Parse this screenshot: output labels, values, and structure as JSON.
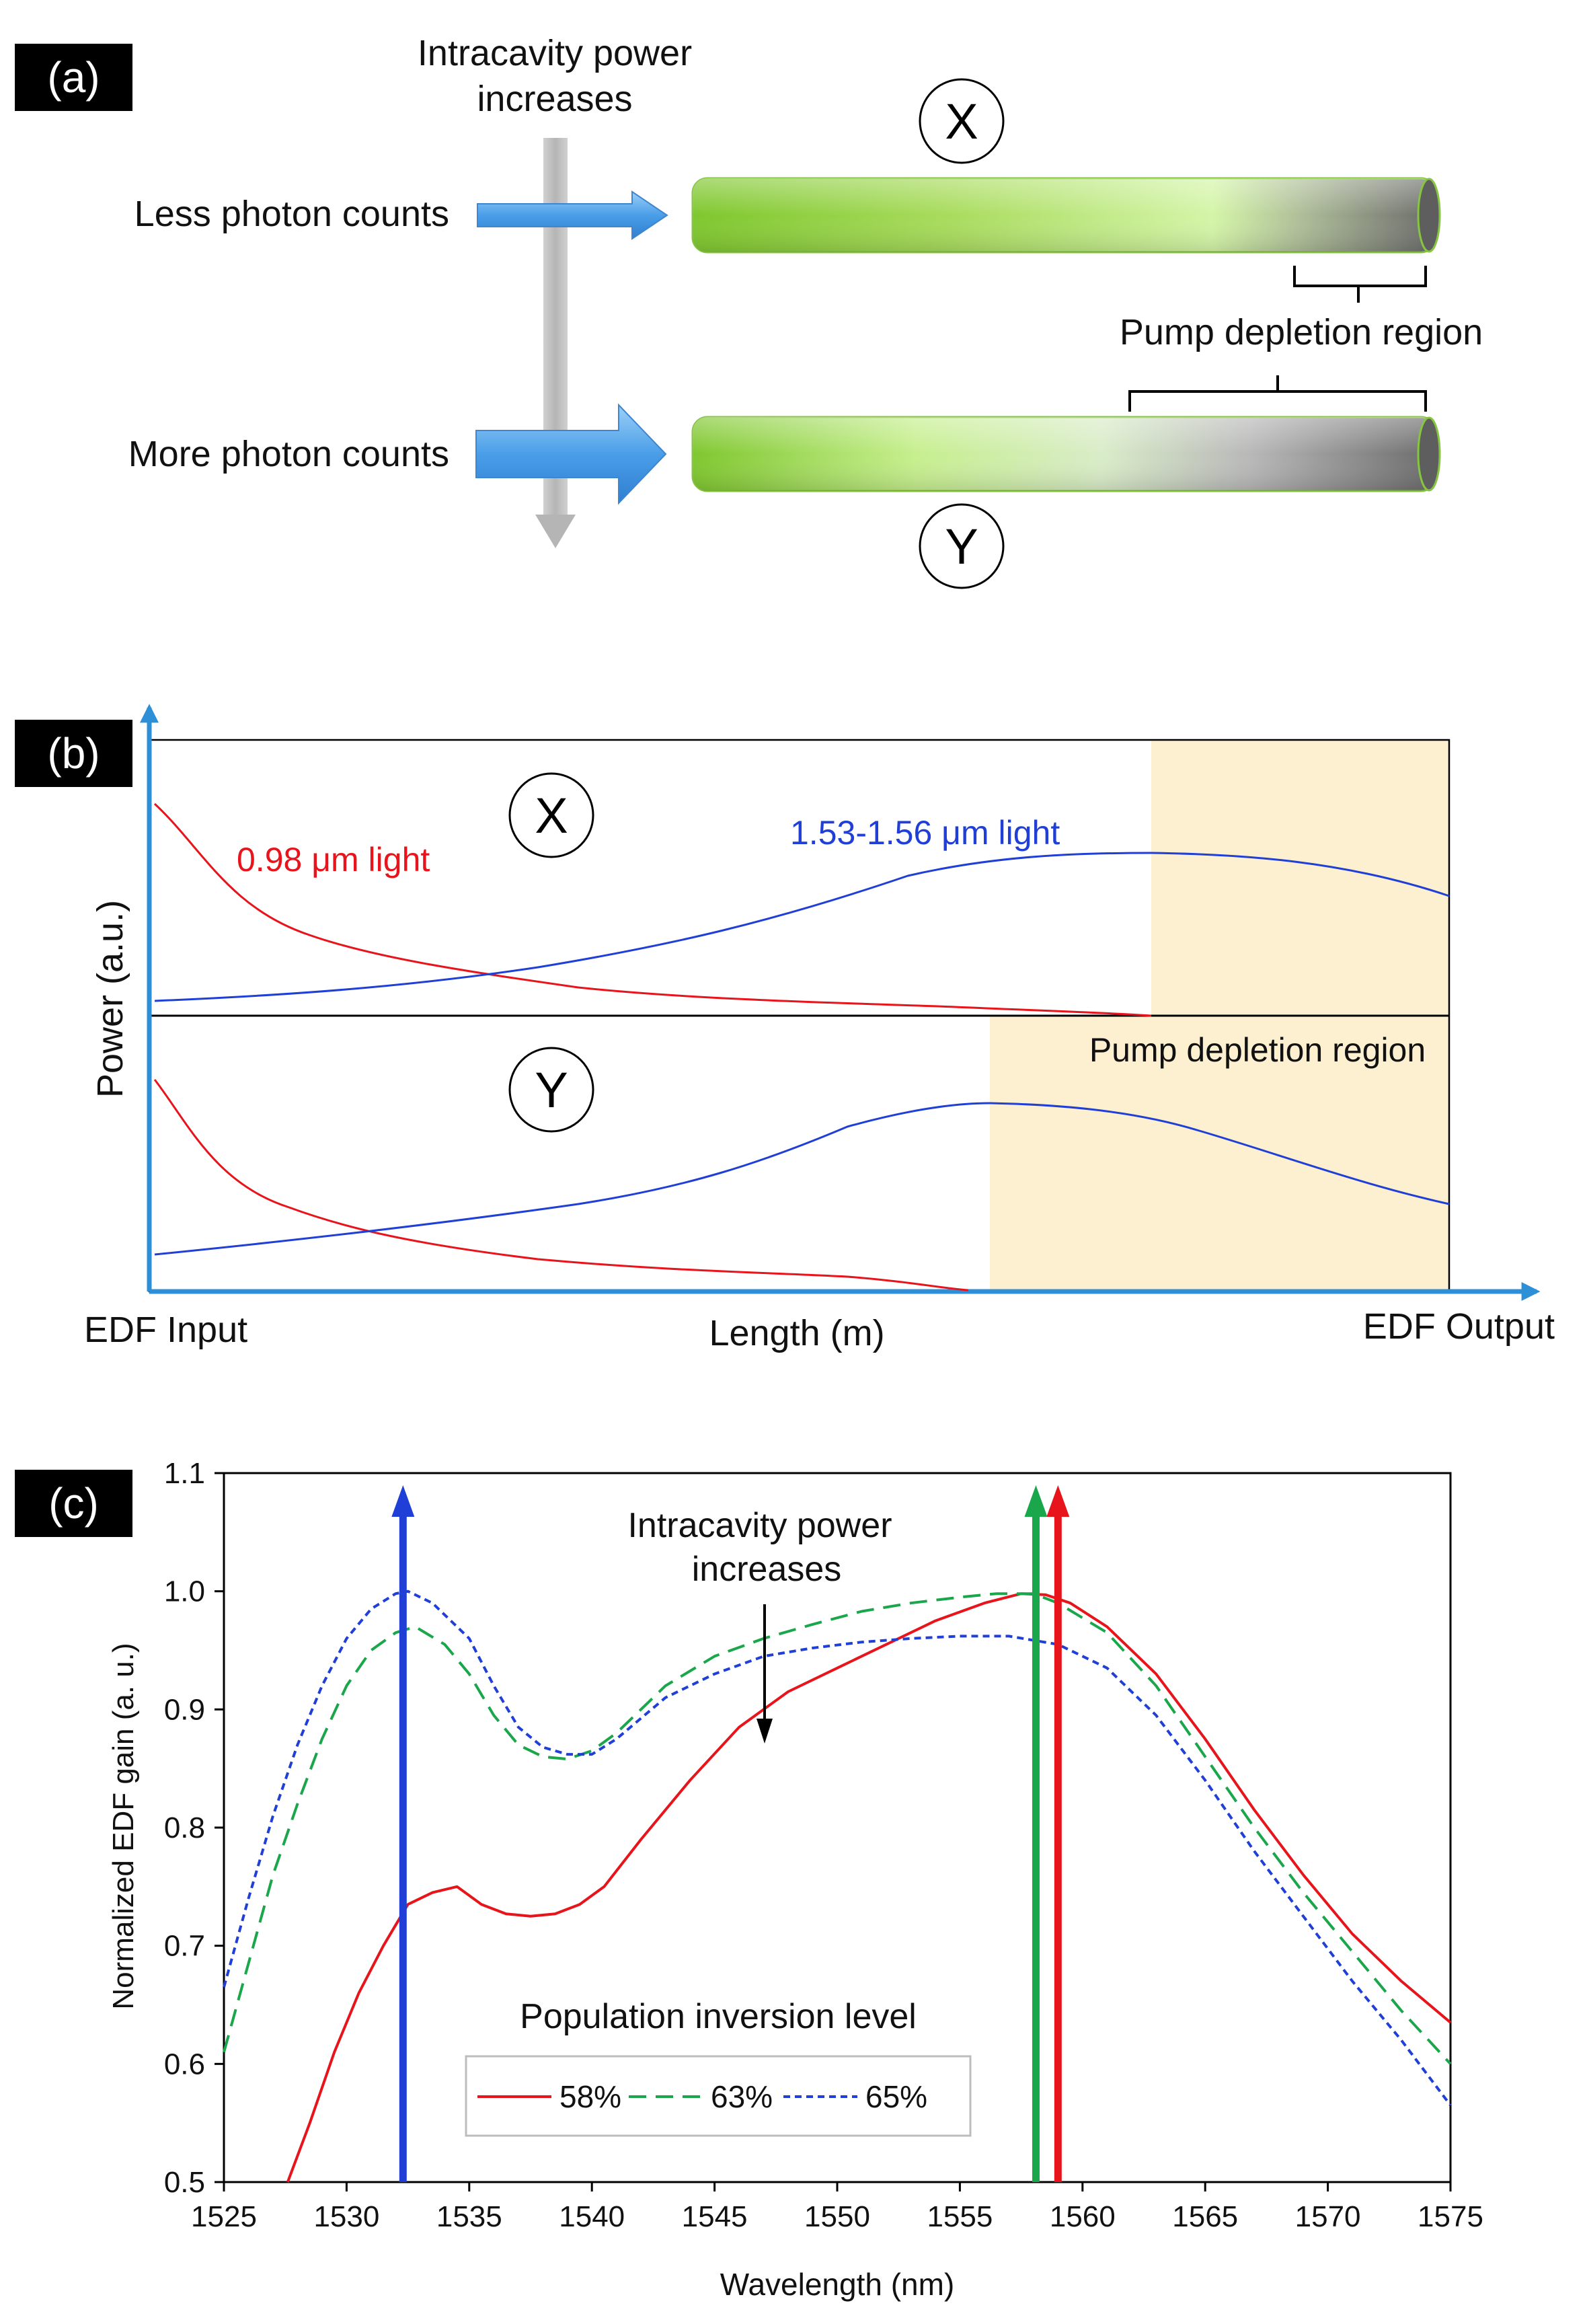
{
  "panel_a": {
    "tag": "(a)",
    "intracavity_label": [
      "Intracavity power",
      "increases"
    ],
    "less_label": "Less photon counts",
    "more_label": "More photon counts",
    "marker_x": "X",
    "marker_y": "Y",
    "pump_label": "Pump depletion region",
    "colors": {
      "fiber_green": "#7fc72e",
      "fiber_gray": "#6b6b6b",
      "arrow_blue": "#4a9ee8"
    }
  },
  "panel_b": {
    "tag": "(b)",
    "ylabel": "Power (a.u.)",
    "xlabel": "Length (m)",
    "x_start": "EDF Input",
    "x_end": "EDF Output",
    "marker_x": "X",
    "marker_y": "Y",
    "pump_label": "0.98 μm light",
    "signal_label": "1.53-1.56 μm light",
    "depletion_label": "Pump depletion region",
    "colors": {
      "pump": "#e8141b",
      "signal": "#1f3fd6",
      "depletion": "#fdf0d0",
      "axis": "#2d8fd5"
    }
  },
  "panel_c": {
    "tag": "(c)",
    "annotation": [
      "Intracavity power",
      "increases"
    ],
    "legend_title": "Population inversion level"
  },
  "chart_data": {
    "type": "line",
    "title": "",
    "xlabel": "Wavelength (nm)",
    "ylabel": "Normalized EDF gain (a. u.)",
    "xlim": [
      1525,
      1575
    ],
    "ylim": [
      0.5,
      1.1
    ],
    "xticks": [
      1525,
      1530,
      1535,
      1540,
      1545,
      1550,
      1555,
      1560,
      1565,
      1570,
      1575
    ],
    "yticks": [
      0.5,
      0.6,
      0.7,
      0.8,
      0.9,
      1.0,
      1.1
    ],
    "ytick_labels": [
      "0.5",
      "0.6",
      "0.7",
      "0.8",
      "0.9",
      "1.0",
      "1.1"
    ],
    "series": [
      {
        "name": "58%",
        "color": "#e8141b",
        "style": "solid",
        "x": [
          1527.6,
          1528.5,
          1529.5,
          1530.5,
          1531.5,
          1532.5,
          1533.5,
          1534.5,
          1535.5,
          1536.5,
          1537.5,
          1538.5,
          1539.5,
          1540.5,
          1542,
          1544,
          1546,
          1548,
          1550,
          1552,
          1554,
          1556,
          1557.5,
          1558.5,
          1559.5,
          1561,
          1563,
          1565,
          1567,
          1569,
          1571,
          1573,
          1575
        ],
        "y": [
          0.5,
          0.55,
          0.61,
          0.66,
          0.7,
          0.735,
          0.745,
          0.75,
          0.735,
          0.727,
          0.725,
          0.727,
          0.735,
          0.75,
          0.79,
          0.84,
          0.885,
          0.915,
          0.935,
          0.955,
          0.975,
          0.99,
          0.998,
          0.997,
          0.99,
          0.97,
          0.93,
          0.875,
          0.815,
          0.76,
          0.71,
          0.67,
          0.635
        ]
      },
      {
        "name": "63%",
        "color": "#1aa64a",
        "style": "dashed",
        "x": [
          1525,
          1526,
          1527,
          1528,
          1529,
          1530,
          1531,
          1532,
          1532.8,
          1534,
          1535,
          1536,
          1537,
          1538,
          1539,
          1540,
          1541,
          1543,
          1545,
          1547,
          1549,
          1551,
          1553,
          1555,
          1556.5,
          1558,
          1559,
          1561,
          1563,
          1565,
          1567,
          1569,
          1571,
          1573,
          1575
        ],
        "y": [
          0.61,
          0.685,
          0.76,
          0.82,
          0.875,
          0.92,
          0.95,
          0.965,
          0.97,
          0.955,
          0.93,
          0.895,
          0.87,
          0.86,
          0.858,
          0.865,
          0.88,
          0.92,
          0.945,
          0.96,
          0.972,
          0.983,
          0.99,
          0.995,
          0.998,
          0.998,
          0.99,
          0.965,
          0.92,
          0.86,
          0.8,
          0.745,
          0.695,
          0.645,
          0.6
        ]
      },
      {
        "name": "65%",
        "color": "#1f3fd6",
        "style": "dotted",
        "x": [
          1525,
          1526,
          1527,
          1528,
          1529,
          1530,
          1531,
          1532,
          1532.5,
          1533.5,
          1535,
          1536,
          1537,
          1538,
          1539,
          1540,
          1541,
          1543,
          1545,
          1547,
          1549,
          1551,
          1553,
          1555,
          1557,
          1559,
          1561,
          1563,
          1565,
          1567,
          1569,
          1571,
          1573,
          1575
        ],
        "y": [
          0.665,
          0.74,
          0.81,
          0.87,
          0.92,
          0.96,
          0.985,
          0.998,
          1.0,
          0.99,
          0.96,
          0.92,
          0.885,
          0.868,
          0.862,
          0.862,
          0.875,
          0.91,
          0.93,
          0.945,
          0.952,
          0.957,
          0.96,
          0.962,
          0.962,
          0.955,
          0.935,
          0.895,
          0.84,
          0.78,
          0.725,
          0.67,
          0.62,
          0.565
        ]
      }
    ],
    "arrows": [
      {
        "x": 1532.3,
        "color": "#1f3fd6"
      },
      {
        "x": 1558.1,
        "color": "#1aa64a"
      },
      {
        "x": 1559.0,
        "color": "#e8141b"
      }
    ]
  }
}
